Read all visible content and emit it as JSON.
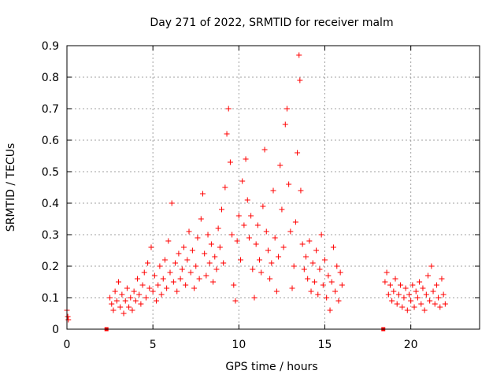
{
  "chart_data": {
    "type": "scatter",
    "title": "Day 271 of 2022, SRMTID for receiver malm",
    "xlabel": "GPS time / hours",
    "ylabel": "SRMTID / TECUs",
    "xlim": [
      0,
      24
    ],
    "ylim": [
      0,
      0.9
    ],
    "xticks": [
      0,
      5,
      10,
      15,
      20
    ],
    "yticks": [
      0,
      0.1,
      0.2,
      0.3,
      0.4,
      0.5,
      0.6,
      0.7,
      0.8,
      0.9
    ],
    "ytick_labels": [
      "0",
      "0.1",
      "0.2",
      "0.3",
      "0.4",
      "0.5",
      "0.6",
      "0.7",
      "0.8",
      "0.9"
    ],
    "grid": true,
    "marker": "+",
    "color": "#ff0000",
    "series": [
      {
        "name": "SRMTID",
        "points": [
          [
            0.0,
            0.06
          ],
          [
            0.05,
            0.04
          ],
          [
            0.08,
            0.03
          ],
          [
            2.3,
            0.0
          ],
          [
            18.4,
            0.0
          ],
          [
            2.5,
            0.1
          ],
          [
            2.6,
            0.08
          ],
          [
            2.7,
            0.06
          ],
          [
            2.8,
            0.12
          ],
          [
            2.9,
            0.09
          ],
          [
            3.0,
            0.15
          ],
          [
            3.1,
            0.07
          ],
          [
            3.2,
            0.11
          ],
          [
            3.3,
            0.05
          ],
          [
            3.4,
            0.09
          ],
          [
            3.5,
            0.13
          ],
          [
            3.6,
            0.07
          ],
          [
            3.7,
            0.1
          ],
          [
            3.8,
            0.06
          ],
          [
            3.9,
            0.12
          ],
          [
            4.0,
            0.09
          ],
          [
            4.1,
            0.16
          ],
          [
            4.2,
            0.11
          ],
          [
            4.3,
            0.08
          ],
          [
            4.4,
            0.14
          ],
          [
            4.5,
            0.18
          ],
          [
            4.6,
            0.1
          ],
          [
            4.7,
            0.21
          ],
          [
            4.8,
            0.13
          ],
          [
            4.9,
            0.26
          ],
          [
            5.0,
            0.12
          ],
          [
            5.1,
            0.17
          ],
          [
            5.2,
            0.09
          ],
          [
            5.3,
            0.14
          ],
          [
            5.4,
            0.2
          ],
          [
            5.5,
            0.11
          ],
          [
            5.6,
            0.16
          ],
          [
            5.7,
            0.22
          ],
          [
            5.8,
            0.13
          ],
          [
            5.9,
            0.28
          ],
          [
            6.0,
            0.18
          ],
          [
            6.1,
            0.4
          ],
          [
            6.2,
            0.15
          ],
          [
            6.3,
            0.21
          ],
          [
            6.4,
            0.12
          ],
          [
            6.5,
            0.24
          ],
          [
            6.6,
            0.16
          ],
          [
            6.7,
            0.19
          ],
          [
            6.8,
            0.26
          ],
          [
            6.9,
            0.14
          ],
          [
            7.0,
            0.22
          ],
          [
            7.1,
            0.31
          ],
          [
            7.2,
            0.18
          ],
          [
            7.3,
            0.25
          ],
          [
            7.4,
            0.13
          ],
          [
            7.5,
            0.2
          ],
          [
            7.6,
            0.29
          ],
          [
            7.7,
            0.16
          ],
          [
            7.8,
            0.35
          ],
          [
            7.9,
            0.43
          ],
          [
            8.0,
            0.24
          ],
          [
            8.1,
            0.17
          ],
          [
            8.2,
            0.3
          ],
          [
            8.3,
            0.21
          ],
          [
            8.4,
            0.27
          ],
          [
            8.5,
            0.15
          ],
          [
            8.6,
            0.23
          ],
          [
            8.7,
            0.19
          ],
          [
            8.8,
            0.32
          ],
          [
            8.9,
            0.26
          ],
          [
            9.0,
            0.38
          ],
          [
            9.1,
            0.21
          ],
          [
            9.2,
            0.45
          ],
          [
            9.3,
            0.62
          ],
          [
            9.4,
            0.7
          ],
          [
            9.5,
            0.53
          ],
          [
            9.6,
            0.3
          ],
          [
            9.7,
            0.14
          ],
          [
            9.8,
            0.09
          ],
          [
            9.9,
            0.28
          ],
          [
            10.0,
            0.36
          ],
          [
            10.1,
            0.22
          ],
          [
            10.2,
            0.47
          ],
          [
            10.3,
            0.33
          ],
          [
            10.4,
            0.54
          ],
          [
            10.5,
            0.41
          ],
          [
            10.6,
            0.29
          ],
          [
            10.7,
            0.36
          ],
          [
            10.8,
            0.19
          ],
          [
            10.9,
            0.1
          ],
          [
            11.0,
            0.27
          ],
          [
            11.1,
            0.33
          ],
          [
            11.2,
            0.22
          ],
          [
            11.3,
            0.18
          ],
          [
            11.4,
            0.39
          ],
          [
            11.5,
            0.57
          ],
          [
            11.6,
            0.31
          ],
          [
            11.7,
            0.25
          ],
          [
            11.8,
            0.16
          ],
          [
            11.9,
            0.21
          ],
          [
            12.0,
            0.44
          ],
          [
            12.1,
            0.29
          ],
          [
            12.2,
            0.12
          ],
          [
            12.3,
            0.23
          ],
          [
            12.4,
            0.52
          ],
          [
            12.5,
            0.38
          ],
          [
            12.6,
            0.26
          ],
          [
            12.7,
            0.65
          ],
          [
            12.8,
            0.7
          ],
          [
            12.9,
            0.46
          ],
          [
            13.0,
            0.31
          ],
          [
            13.1,
            0.13
          ],
          [
            13.2,
            0.2
          ],
          [
            13.3,
            0.34
          ],
          [
            13.4,
            0.56
          ],
          [
            13.5,
            0.87
          ],
          [
            13.55,
            0.79
          ],
          [
            13.6,
            0.44
          ],
          [
            13.7,
            0.27
          ],
          [
            13.8,
            0.19
          ],
          [
            13.9,
            0.23
          ],
          [
            14.0,
            0.16
          ],
          [
            14.1,
            0.28
          ],
          [
            14.2,
            0.12
          ],
          [
            14.3,
            0.21
          ],
          [
            14.4,
            0.15
          ],
          [
            14.5,
            0.25
          ],
          [
            14.6,
            0.11
          ],
          [
            14.7,
            0.19
          ],
          [
            14.8,
            0.3
          ],
          [
            14.9,
            0.14
          ],
          [
            15.0,
            0.22
          ],
          [
            15.1,
            0.1
          ],
          [
            15.2,
            0.17
          ],
          [
            15.3,
            0.06
          ],
          [
            15.4,
            0.15
          ],
          [
            15.5,
            0.26
          ],
          [
            15.6,
            0.12
          ],
          [
            15.7,
            0.2
          ],
          [
            15.8,
            0.09
          ],
          [
            15.9,
            0.18
          ],
          [
            16.0,
            0.14
          ],
          [
            18.5,
            0.15
          ],
          [
            18.6,
            0.18
          ],
          [
            18.7,
            0.11
          ],
          [
            18.8,
            0.14
          ],
          [
            18.9,
            0.09
          ],
          [
            19.0,
            0.12
          ],
          [
            19.1,
            0.16
          ],
          [
            19.2,
            0.08
          ],
          [
            19.3,
            0.11
          ],
          [
            19.4,
            0.14
          ],
          [
            19.5,
            0.07
          ],
          [
            19.6,
            0.1
          ],
          [
            19.7,
            0.13
          ],
          [
            19.8,
            0.06
          ],
          [
            19.9,
            0.11
          ],
          [
            20.0,
            0.09
          ],
          [
            20.1,
            0.14
          ],
          [
            20.2,
            0.07
          ],
          [
            20.3,
            0.12
          ],
          [
            20.4,
            0.1
          ],
          [
            20.5,
            0.15
          ],
          [
            20.6,
            0.08
          ],
          [
            20.7,
            0.13
          ],
          [
            20.8,
            0.06
          ],
          [
            20.9,
            0.11
          ],
          [
            21.0,
            0.17
          ],
          [
            21.1,
            0.09
          ],
          [
            21.2,
            0.2
          ],
          [
            21.3,
            0.12
          ],
          [
            21.4,
            0.08
          ],
          [
            21.5,
            0.14
          ],
          [
            21.6,
            0.1
          ],
          [
            21.7,
            0.07
          ],
          [
            21.8,
            0.16
          ],
          [
            21.9,
            0.11
          ],
          [
            22.0,
            0.08
          ]
        ]
      }
    ]
  }
}
